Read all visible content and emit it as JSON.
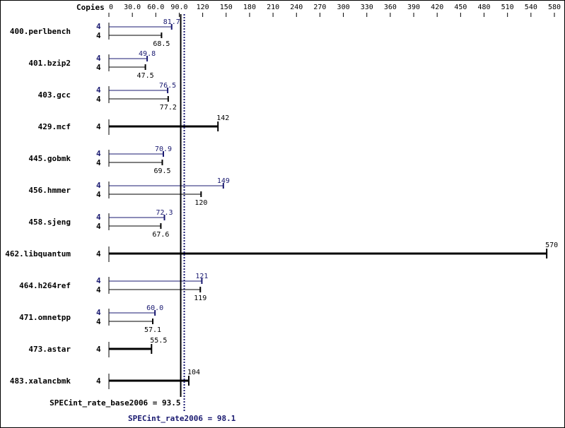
{
  "colors": {
    "base": "#000000",
    "peak": "#191970",
    "frame": "#000000",
    "background": "#ffffff"
  },
  "chart_data": {
    "type": "bar",
    "orientation": "horizontal",
    "copies_header": "Copies",
    "xlim": [
      0,
      580
    ],
    "xticks": [
      "0",
      "30.0",
      "60.0",
      "90.0",
      "120",
      "150",
      "180",
      "210",
      "240",
      "270",
      "300",
      "330",
      "360",
      "390",
      "420",
      "450",
      "480",
      "510",
      "540",
      "580"
    ],
    "benchmarks": [
      {
        "name": "400.perlbench",
        "peak_copies": "4",
        "peak": 81.7,
        "peak_label": "81.7",
        "base_copies": "4",
        "base": 68.5,
        "base_label": "68.5"
      },
      {
        "name": "401.bzip2",
        "peak_copies": "4",
        "peak": 49.8,
        "peak_label": "49.8",
        "base_copies": "4",
        "base": 47.5,
        "base_label": "47.5"
      },
      {
        "name": "403.gcc",
        "peak_copies": "4",
        "peak": 76.5,
        "peak_label": "76.5",
        "base_copies": "4",
        "base": 77.2,
        "base_label": "77.2"
      },
      {
        "name": "429.mcf",
        "combined_copies": "4",
        "value": 142,
        "value_label": "142"
      },
      {
        "name": "445.gobmk",
        "peak_copies": "4",
        "peak": 70.9,
        "peak_label": "70.9",
        "base_copies": "4",
        "base": 69.5,
        "base_label": "69.5"
      },
      {
        "name": "456.hmmer",
        "peak_copies": "4",
        "peak": 149,
        "peak_label": "149",
        "base_copies": "4",
        "base": 120,
        "base_label": "120"
      },
      {
        "name": "458.sjeng",
        "peak_copies": "4",
        "peak": 72.3,
        "peak_label": "72.3",
        "base_copies": "4",
        "base": 67.6,
        "base_label": "67.6"
      },
      {
        "name": "462.libquantum",
        "combined_copies": "4",
        "value": 570,
        "value_label": "570"
      },
      {
        "name": "464.h264ref",
        "peak_copies": "4",
        "peak": 121,
        "peak_label": "121",
        "base_copies": "4",
        "base": 119,
        "base_label": "119"
      },
      {
        "name": "471.omnetpp",
        "peak_copies": "4",
        "peak": 60.0,
        "peak_label": "60.0",
        "base_copies": "4",
        "base": 57.1,
        "base_label": "57.1"
      },
      {
        "name": "473.astar",
        "combined_copies": "4",
        "value": 55.5,
        "value_label": "55.5"
      },
      {
        "name": "483.xalancbmk",
        "combined_copies": "4",
        "value": 104,
        "value_label": "104"
      }
    ],
    "base_summary": {
      "label": "SPECint_rate_base2006 = 93.5",
      "value": 93.5
    },
    "peak_summary": {
      "label": "SPECint_rate2006 = 98.1",
      "value": 98.1
    }
  }
}
